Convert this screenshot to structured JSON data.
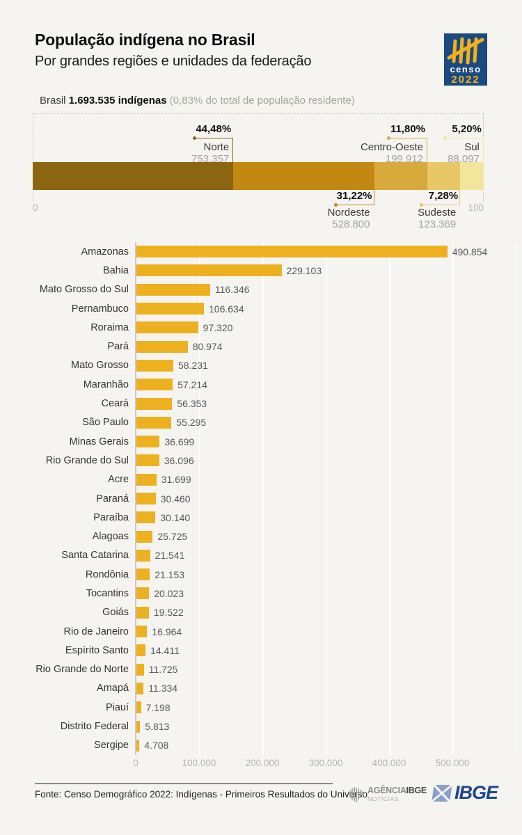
{
  "header": {
    "title": "População indígena no Brasil",
    "subtitle": "Por grandes regiões e unidades da federação",
    "censo_logo": {
      "word": "censo",
      "year": "2022"
    }
  },
  "summary": {
    "prefix": "Brasil ",
    "bold": "1.693.535 indígenas",
    "note": " (0,83% do total de população residente)"
  },
  "colors": {
    "background": "#f5f4f1",
    "state_bar": "#edb01f",
    "censo_navy": "#1b4a80",
    "censo_yellow": "#f2b01e",
    "ibge_navy": "#1d4590",
    "ibge_icon_blue": "#8b9fcb"
  },
  "chart_data": [
    {
      "type": "bar",
      "subtype": "stacked_horizontal_percent",
      "title": "",
      "axis": {
        "min_label": "0",
        "max_label": "100",
        "xlim": [
          0,
          100
        ]
      },
      "segments": [
        {
          "name": "Norte",
          "percent": 44.48,
          "percent_label": "44,48%",
          "value": 753357,
          "value_label": "753.357",
          "color": "#8c6510",
          "label_position": "above"
        },
        {
          "name": "Nordeste",
          "percent": 31.22,
          "percent_label": "31,22%",
          "value": 528800,
          "value_label": "528.800",
          "color": "#c28812",
          "label_position": "below"
        },
        {
          "name": "Centro-Oeste",
          "percent": 11.8,
          "percent_label": "11,80%",
          "value": 199912,
          "value_label": "199.912",
          "color": "#d8a93c",
          "label_position": "above"
        },
        {
          "name": "Sudeste",
          "percent": 7.28,
          "percent_label": "7,28%",
          "value": 123369,
          "value_label": "123.369",
          "color": "#e8c766",
          "label_position": "below"
        },
        {
          "name": "Sul",
          "percent": 5.2,
          "percent_label": "5,20%",
          "value": 88097,
          "value_label": "88.097",
          "color": "#f3e59c",
          "label_position": "above"
        }
      ]
    },
    {
      "type": "bar",
      "subtype": "horizontal",
      "title": "",
      "bar_color": "#edb01f",
      "xlim": [
        0,
        600000
      ],
      "grid": true,
      "x_ticks": [
        "0",
        "100.000",
        "200.000",
        "300.000",
        "400.000",
        "500.000"
      ],
      "x_tick_values": [
        0,
        100000,
        200000,
        300000,
        400000,
        500000
      ],
      "categories": [
        "Amazonas",
        "Bahia",
        "Mato Grosso do Sul",
        "Pernambuco",
        "Roraima",
        "Pará",
        "Mato Grosso",
        "Maranhão",
        "Ceará",
        "São Paulo",
        "Minas Gerais",
        "Rio Grande do Sul",
        "Acre",
        "Paraná",
        "Paraíba",
        "Alagoas",
        "Santa Catarina",
        "Rondônia",
        "Tocantins",
        "Goiás",
        "Rio de Janeiro",
        "Espírito Santo",
        "Rio Grande do Norte",
        "Amapá",
        "Piauí",
        "Distrito Federal",
        "Sergipe"
      ],
      "values": [
        490854,
        229103,
        116346,
        106634,
        97320,
        80974,
        58231,
        57214,
        56353,
        55295,
        36699,
        36096,
        31699,
        30460,
        30140,
        25725,
        21541,
        21153,
        20023,
        19522,
        16964,
        14411,
        11725,
        11334,
        7198,
        5813,
        4708
      ],
      "value_labels": [
        "490.854",
        "229.103",
        "116.346",
        "106.634",
        "97.320",
        "80.974",
        "58.231",
        "57.214",
        "56.353",
        "55.295",
        "36.699",
        "36.096",
        "31.699",
        "30.460",
        "30.140",
        "25.725",
        "21.541",
        "21.153",
        "20.023",
        "19.522",
        "16.964",
        "14.411",
        "11.725",
        "11.334",
        "7.198",
        "5.813",
        "4.708"
      ]
    }
  ],
  "footer": {
    "source": "Fonte: Censo Demográfico 2022: Indígenas - Primeiros Resultados do Universo",
    "agencia_logo": {
      "line1_a": "AGÊNCIA",
      "line1_b": "IBGE",
      "line2": "NOTÍCIAS"
    },
    "ibge_logo": "IBGE"
  }
}
